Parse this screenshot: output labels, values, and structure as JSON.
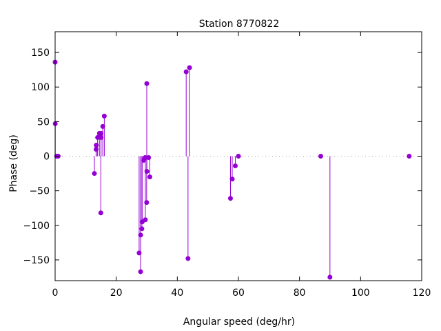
{
  "chart_data": {
    "type": "stem",
    "title": "Station 8770822",
    "xlabel": "Angular speed (deg/hr)",
    "ylabel": "Phase (deg)",
    "xlim": [
      0,
      120
    ],
    "ylim": [
      -180,
      180
    ],
    "xticks": [
      0,
      20,
      40,
      60,
      80,
      100,
      120
    ],
    "yticks": [
      -150,
      -100,
      -50,
      0,
      50,
      100,
      150
    ],
    "grid": false,
    "zero_line": true,
    "color": "#9400d3",
    "points": [
      [
        0.0,
        136
      ],
      [
        0.04,
        47
      ],
      [
        0.5,
        0
      ],
      [
        1.0,
        0
      ],
      [
        12.85,
        -25
      ],
      [
        13.4,
        10
      ],
      [
        13.47,
        16
      ],
      [
        13.9,
        27
      ],
      [
        14.5,
        33
      ],
      [
        14.96,
        -82
      ],
      [
        15.0,
        33
      ],
      [
        15.04,
        27
      ],
      [
        15.6,
        43
      ],
      [
        16.1,
        58
      ],
      [
        27.5,
        -140
      ],
      [
        27.97,
        -167
      ],
      [
        28.0,
        -114
      ],
      [
        28.4,
        -105
      ],
      [
        28.5,
        -95
      ],
      [
        29.0,
        -6
      ],
      [
        29.45,
        -2
      ],
      [
        29.53,
        -92
      ],
      [
        29.96,
        -67
      ],
      [
        30.0,
        105
      ],
      [
        30.04,
        -22
      ],
      [
        30.6,
        -2
      ],
      [
        31.0,
        -30
      ],
      [
        42.9,
        122
      ],
      [
        43.5,
        -148
      ],
      [
        44.0,
        128
      ],
      [
        57.4,
        -61
      ],
      [
        57.97,
        -33
      ],
      [
        58.98,
        -14
      ],
      [
        60.0,
        0
      ],
      [
        86.95,
        0
      ],
      [
        89.96,
        -175
      ],
      [
        115.9,
        0
      ]
    ]
  }
}
